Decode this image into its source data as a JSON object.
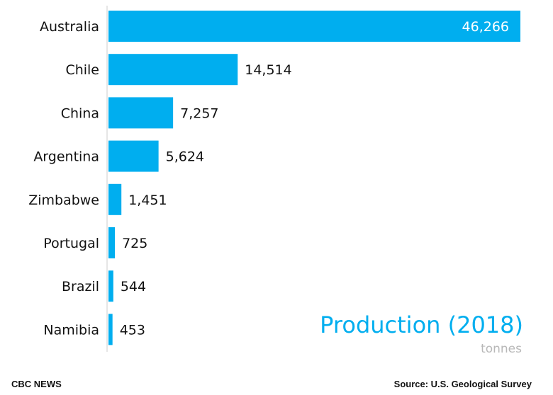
{
  "chart_data": {
    "type": "bar",
    "orientation": "horizontal",
    "title": "Production (2018)",
    "subtitle": "tonnes",
    "categories": [
      "Australia",
      "Chile",
      "China",
      "Argentina",
      "Zimbabwe",
      "Portugal",
      "Brazil",
      "Namibia"
    ],
    "values": [
      46266,
      14514,
      7257,
      5624,
      1451,
      725,
      544,
      453
    ],
    "value_labels": [
      "46,266",
      "14,514",
      "7,257",
      "5,624",
      "1,451",
      "725",
      "544",
      "453"
    ],
    "xlim": [
      0,
      46266
    ],
    "bar_color": "#00aeef",
    "grid": false
  },
  "footer": {
    "left": "CBC NEWS",
    "right": "Source: U.S. Geological Survey"
  }
}
